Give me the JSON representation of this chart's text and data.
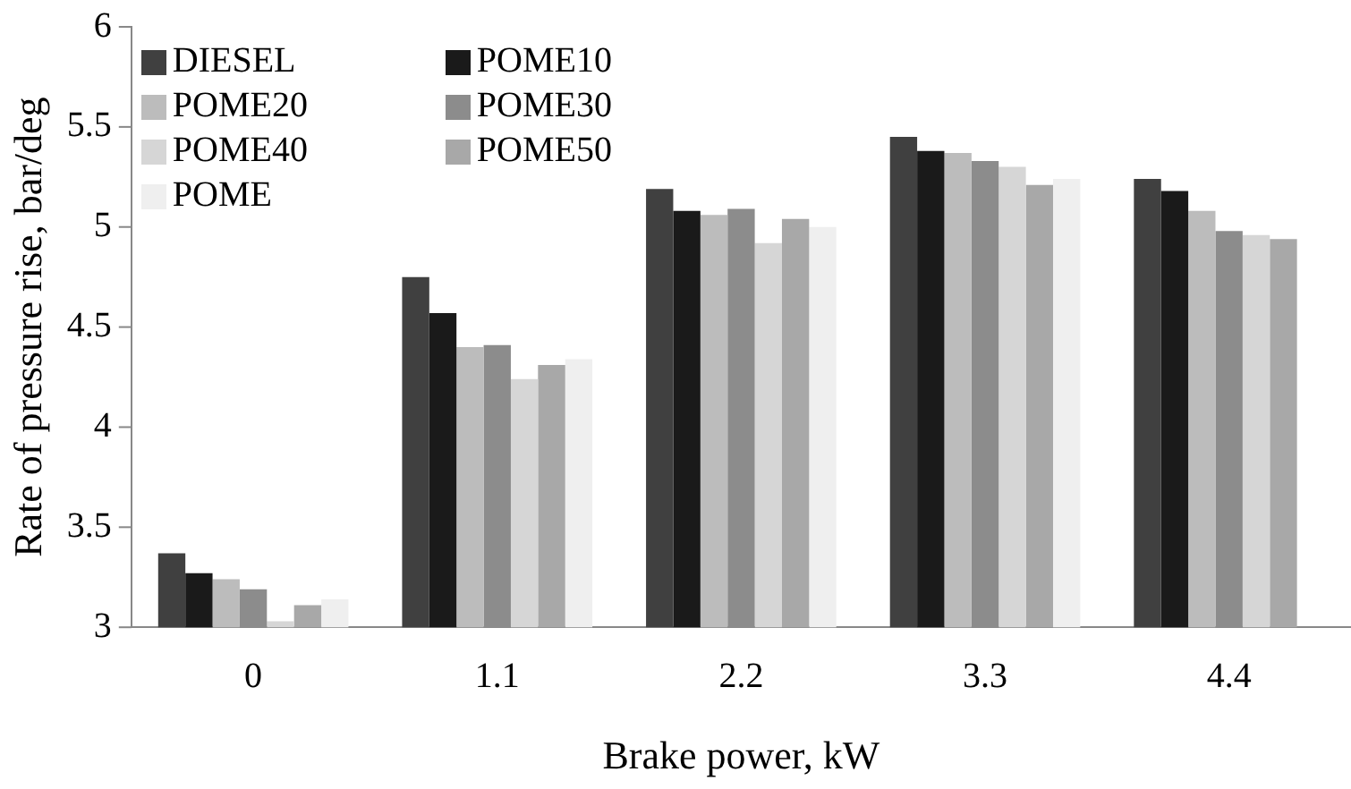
{
  "chart_data": {
    "type": "bar",
    "xlabel": "Brake power, kW",
    "ylabel": "Rate of pressure rise, bar/deg",
    "categories": [
      "0",
      "1.1",
      "2.2",
      "3.3",
      "4.4"
    ],
    "series": [
      {
        "name": "DIESEL",
        "color": "#404040",
        "values": [
          3.37,
          4.75,
          5.19,
          5.45,
          5.24
        ]
      },
      {
        "name": "POME10",
        "color": "#1a1a1a",
        "values": [
          3.27,
          4.57,
          5.08,
          5.38,
          5.18
        ]
      },
      {
        "name": "POME20",
        "color": "#bcbcbc",
        "values": [
          3.24,
          4.4,
          5.06,
          5.37,
          5.08
        ]
      },
      {
        "name": "POME30",
        "color": "#8c8c8c",
        "values": [
          3.19,
          4.41,
          5.09,
          5.33,
          4.98
        ]
      },
      {
        "name": "POME40",
        "color": "#d6d6d6",
        "values": [
          3.03,
          4.24,
          4.92,
          5.3,
          4.96
        ]
      },
      {
        "name": "POME50",
        "color": "#a8a8a8",
        "values": [
          3.11,
          4.31,
          5.04,
          5.21,
          4.94
        ]
      },
      {
        "name": "POME",
        "color": "#efefef",
        "values": [
          3.14,
          4.34,
          5.0,
          5.24,
          null
        ]
      }
    ],
    "ylim": [
      3,
      6
    ],
    "yticks": [
      3,
      3.5,
      4,
      4.5,
      5,
      5.5,
      6
    ],
    "grid": false,
    "legend": "top left"
  }
}
